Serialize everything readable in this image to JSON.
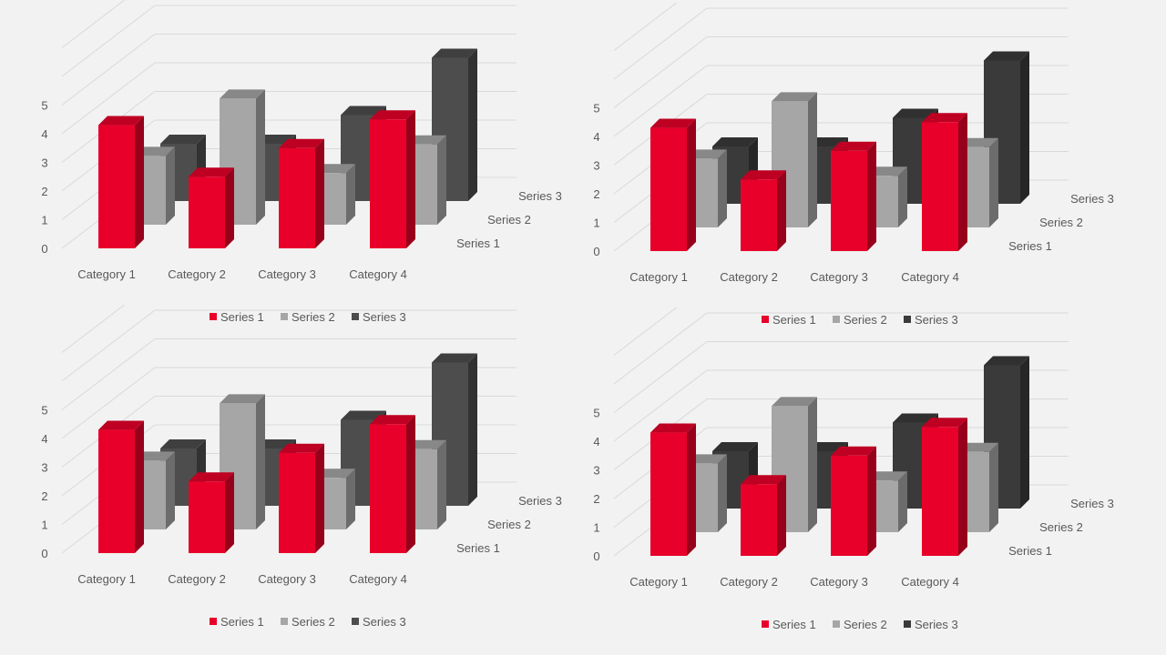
{
  "slide": {
    "background": "#f2f2f2"
  },
  "chart_data": [
    {
      "type": "bar",
      "title": "",
      "categories": [
        "Category 1",
        "Category 2",
        "Category 3",
        "Category 4"
      ],
      "series": [
        {
          "name": "Series 1",
          "values": [
            4.3,
            2.5,
            3.5,
            4.5
          ],
          "color": "#e8002a"
        },
        {
          "name": "Series 2",
          "values": [
            2.4,
            4.4,
            1.8,
            2.8
          ],
          "color": "#a6a6a6"
        },
        {
          "name": "Series 3",
          "values": [
            2.0,
            2.0,
            3.0,
            5.0
          ],
          "color": "#4d4d4d"
        }
      ],
      "y_ticks": [
        "0",
        "1",
        "2",
        "3",
        "4",
        "5"
      ],
      "ylim": [
        0,
        7
      ],
      "grid": true,
      "legend": "bottom",
      "xlabel": "",
      "ylabel": ""
    },
    {
      "type": "bar",
      "title": "",
      "categories": [
        "Category 1",
        "Category 2",
        "Category 3",
        "Category 4"
      ],
      "series": [
        {
          "name": "Series 1",
          "values": [
            4.3,
            2.5,
            3.5,
            4.5
          ],
          "color": "#e8002a"
        },
        {
          "name": "Series 2",
          "values": [
            2.4,
            4.4,
            1.8,
            2.8
          ],
          "color": "#a6a6a6"
        },
        {
          "name": "Series 3",
          "values": [
            2.0,
            2.0,
            3.0,
            5.0
          ],
          "color": "#3a3a3a"
        }
      ],
      "y_ticks": [
        "0",
        "1",
        "2",
        "3",
        "4",
        "5"
      ],
      "ylim": [
        0,
        7
      ],
      "grid": true,
      "legend": "bottom",
      "xlabel": "",
      "ylabel": ""
    },
    {
      "type": "bar",
      "title": "",
      "categories": [
        "Category 1",
        "Category 2",
        "Category 3",
        "Category 4"
      ],
      "series": [
        {
          "name": "Series 1",
          "values": [
            4.3,
            2.5,
            3.5,
            4.5
          ],
          "color": "#e8002a"
        },
        {
          "name": "Series 2",
          "values": [
            2.4,
            4.4,
            1.8,
            2.8
          ],
          "color": "#a6a6a6"
        },
        {
          "name": "Series 3",
          "values": [
            2.0,
            2.0,
            3.0,
            5.0
          ],
          "color": "#4d4d4d"
        }
      ],
      "y_ticks": [
        "0",
        "1",
        "2",
        "3",
        "4",
        "5"
      ],
      "ylim": [
        0,
        7
      ],
      "grid": true,
      "legend": "bottom",
      "xlabel": "",
      "ylabel": ""
    },
    {
      "type": "bar",
      "title": "",
      "categories": [
        "Category 1",
        "Category 2",
        "Category 3",
        "Category 4"
      ],
      "series": [
        {
          "name": "Series 1",
          "values": [
            4.3,
            2.5,
            3.5,
            4.5
          ],
          "color": "#e8002a"
        },
        {
          "name": "Series 2",
          "values": [
            2.4,
            4.4,
            1.8,
            2.8
          ],
          "color": "#a6a6a6"
        },
        {
          "name": "Series 3",
          "values": [
            2.0,
            2.0,
            3.0,
            5.0
          ],
          "color": "#3a3a3a"
        }
      ],
      "y_ticks": [
        "0",
        "1",
        "2",
        "3",
        "4",
        "5"
      ],
      "ylim": [
        0,
        7
      ],
      "grid": true,
      "legend": "bottom",
      "xlabel": "",
      "ylabel": ""
    }
  ]
}
